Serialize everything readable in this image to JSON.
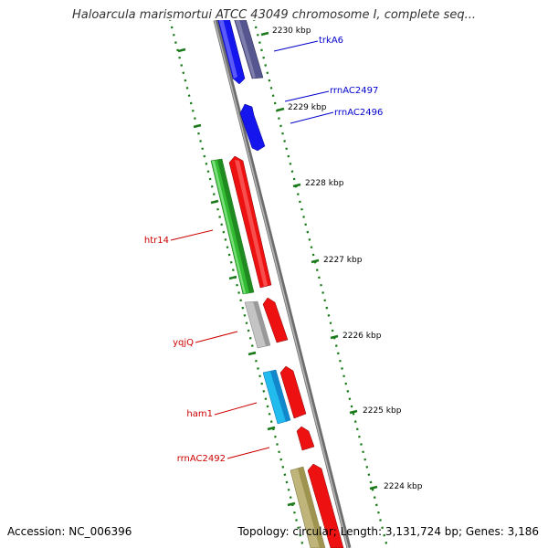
{
  "title": "Haloarcula marismortui ATCC 43049 chromosome I, complete seq...",
  "footer": {
    "accession": "Accession: NC_006396",
    "summary": "Topology: circular; Length: 3,131,724 bp; Genes: 3,186"
  },
  "kbp_labels": [
    "2230 kbp",
    "2229 kbp",
    "2228 kbp",
    "2227 kbp",
    "2226 kbp",
    "2225 kbp",
    "2224 kbp"
  ],
  "gene_labels": [
    {
      "text": "trkA6",
      "color": "#0000cc"
    },
    {
      "text": "rrnAC2497",
      "color": "#0000cc"
    },
    {
      "text": "rrnAC2496",
      "color": "#0000cc"
    },
    {
      "text": "htr14",
      "color": "#cc0000"
    },
    {
      "text": "yqjQ",
      "color": "#cc0000"
    },
    {
      "text": "ham1",
      "color": "#cc0000"
    },
    {
      "text": "rrnAC2492",
      "color": "#cc0000"
    }
  ],
  "colors": {
    "backbone": "#8a8a8a",
    "tick": "#1a7a1a",
    "blue": "#0000ee",
    "navy": "#4a4a8a",
    "red": "#ee0000",
    "green": "#33bb33",
    "gray": "#bbbbbb",
    "cyan": "#22bbee",
    "khaki": "#bfb57a"
  }
}
